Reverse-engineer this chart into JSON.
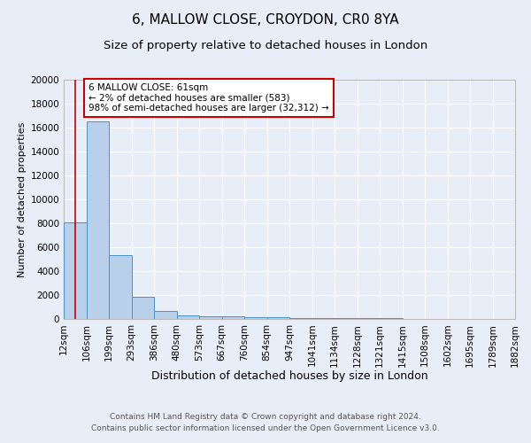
{
  "title1": "6, MALLOW CLOSE, CROYDON, CR0 8YA",
  "title2": "Size of property relative to detached houses in London",
  "xlabel": "Distribution of detached houses by size in London",
  "ylabel": "Number of detached properties",
  "bin_edges": [
    12,
    106,
    199,
    293,
    386,
    480,
    573,
    667,
    760,
    854,
    947,
    1041,
    1134,
    1228,
    1321,
    1415,
    1508,
    1602,
    1695,
    1789,
    1882
  ],
  "bar_heights": [
    8100,
    16500,
    5300,
    1850,
    700,
    300,
    225,
    200,
    175,
    175,
    100,
    80,
    60,
    50,
    40,
    30,
    25,
    20,
    15,
    10
  ],
  "bar_color": "#b8d0ea",
  "bar_edge_color": "#4a90c4",
  "background_color": "#e8eef8",
  "grid_color": "#ffffff",
  "annotation_text": "6 MALLOW CLOSE: 61sqm\n← 2% of detached houses are smaller (583)\n98% of semi-detached houses are larger (32,312) →",
  "annotation_box_facecolor": "#ffffff",
  "annotation_box_edgecolor": "#cc0000",
  "red_line_x": 61,
  "ylim": [
    0,
    20000
  ],
  "yticks": [
    0,
    2000,
    4000,
    6000,
    8000,
    10000,
    12000,
    14000,
    16000,
    18000,
    20000
  ],
  "footer1": "Contains HM Land Registry data © Crown copyright and database right 2024.",
  "footer2": "Contains public sector information licensed under the Open Government Licence v3.0.",
  "title1_fontsize": 11,
  "title2_fontsize": 9.5,
  "xlabel_fontsize": 9,
  "ylabel_fontsize": 8,
  "tick_fontsize": 7.5,
  "footer_fontsize": 6.5,
  "annotation_fontsize": 7.5
}
